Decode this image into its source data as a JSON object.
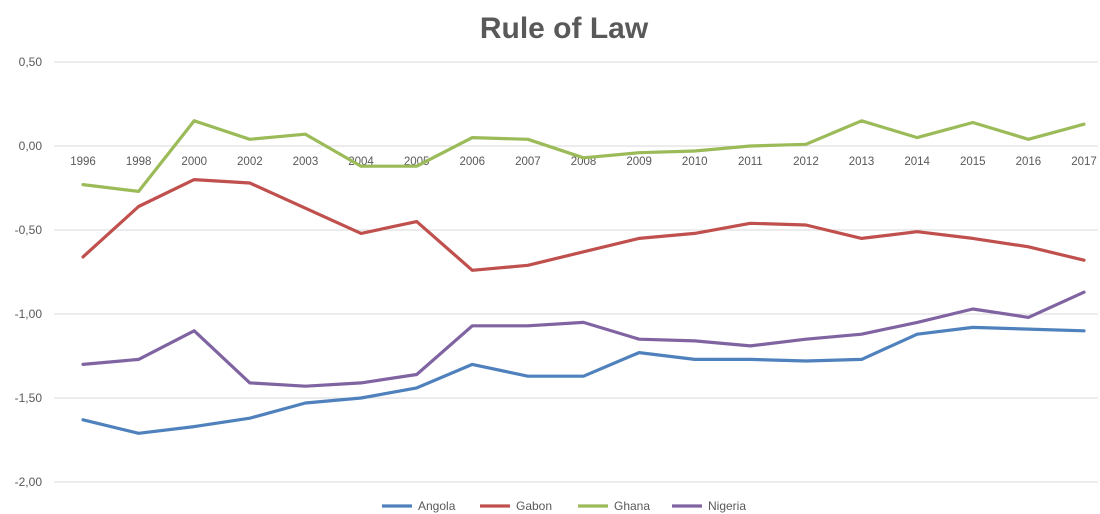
{
  "chart_data": {
    "type": "line",
    "title": "Rule of Law",
    "xlabel": "",
    "ylabel": "",
    "ylim": [
      -2.0,
      0.5
    ],
    "ytick_values": [
      0.5,
      0.0,
      -0.5,
      -1.0,
      -1.5,
      -2.0
    ],
    "ytick_labels": [
      "0,50",
      "0,00",
      "-0,50",
      "-1,00",
      "-1,50",
      "-2,00"
    ],
    "grid": true,
    "legend_position": "bottom",
    "categories": [
      "1996",
      "1998",
      "2000",
      "2002",
      "2003",
      "2004",
      "2005",
      "2006",
      "2007",
      "2008",
      "2009",
      "2010",
      "2011",
      "2012",
      "2013",
      "2014",
      "2015",
      "2016",
      "2017"
    ],
    "series": [
      {
        "name": "Angola",
        "color": "#4f81bd",
        "values": [
          -1.63,
          -1.71,
          -1.67,
          -1.62,
          -1.53,
          -1.5,
          -1.44,
          -1.3,
          -1.37,
          -1.37,
          -1.23,
          -1.27,
          -1.27,
          -1.28,
          -1.27,
          -1.12,
          -1.08,
          -1.09,
          -1.1
        ]
      },
      {
        "name": "Gabon",
        "color": "#c0504d",
        "values": [
          -0.66,
          -0.36,
          -0.2,
          -0.22,
          -0.37,
          -0.52,
          -0.45,
          -0.74,
          -0.71,
          -0.63,
          -0.55,
          -0.52,
          -0.46,
          -0.47,
          -0.55,
          -0.51,
          -0.55,
          -0.6,
          -0.68
        ]
      },
      {
        "name": "Ghana",
        "color": "#9bbb59",
        "values": [
          -0.23,
          -0.27,
          0.15,
          0.04,
          0.07,
          -0.12,
          -0.12,
          0.05,
          0.04,
          -0.07,
          -0.04,
          -0.03,
          0.0,
          0.01,
          0.15,
          0.05,
          0.14,
          0.04,
          0.13
        ]
      },
      {
        "name": "Nigeria",
        "color": "#8064a2",
        "values": [
          -1.3,
          -1.27,
          -1.1,
          -1.41,
          -1.43,
          -1.41,
          -1.36,
          -1.07,
          -1.07,
          -1.05,
          -1.15,
          -1.16,
          -1.19,
          -1.15,
          -1.12,
          -1.05,
          -0.97,
          -1.02,
          -0.87
        ]
      }
    ]
  }
}
